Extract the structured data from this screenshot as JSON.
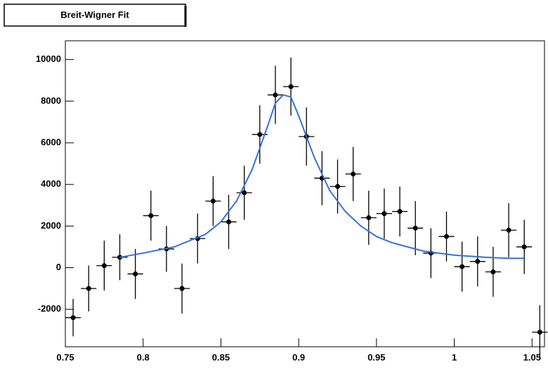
{
  "chart_data": {
    "type": "scatter",
    "title": "Breit-Wigner Fit",
    "xlim": [
      0.75,
      1.058
    ],
    "ylim": [
      -3800,
      10900
    ],
    "xticks": [
      0.75,
      0.8,
      0.85,
      0.9,
      0.95,
      1,
      1.05
    ],
    "yticks": [
      -2000,
      0,
      2000,
      4000,
      6000,
      8000,
      10000
    ],
    "points": {
      "color": "#000000",
      "x": [
        0.755,
        0.765,
        0.775,
        0.785,
        0.795,
        0.805,
        0.815,
        0.825,
        0.835,
        0.845,
        0.855,
        0.865,
        0.875,
        0.885,
        0.895,
        0.905,
        0.915,
        0.925,
        0.935,
        0.945,
        0.955,
        0.965,
        0.975,
        0.985,
        0.995,
        1.005,
        1.015,
        1.025,
        1.035,
        1.045,
        1.055
      ],
      "y": [
        -2400,
        -1000,
        100,
        500,
        -300,
        2500,
        900,
        -1000,
        1400,
        3200,
        2200,
        3600,
        6400,
        8300,
        8700,
        6300,
        4300,
        3900,
        4500,
        2400,
        2600,
        2700,
        1900,
        700,
        1500,
        50,
        300,
        -200,
        1800,
        1000,
        -3100
      ],
      "yerr": [
        900,
        1100,
        1200,
        1100,
        1200,
        1200,
        1100,
        1200,
        1200,
        1200,
        1300,
        1300,
        1400,
        1400,
        1400,
        1400,
        1300,
        1300,
        1300,
        1300,
        1200,
        1200,
        1300,
        1200,
        1200,
        1200,
        1200,
        1200,
        1300,
        1300,
        1300
      ]
    },
    "fit": {
      "color": "#3a6fd8",
      "x": [
        0.785,
        0.8,
        0.82,
        0.84,
        0.85,
        0.86,
        0.87,
        0.88,
        0.885,
        0.89,
        0.895,
        0.9,
        0.91,
        0.92,
        0.93,
        0.94,
        0.95,
        0.96,
        0.97,
        0.98,
        1.0,
        1.02,
        1.035,
        1.045
      ],
      "y": [
        500,
        700,
        1000,
        1600,
        2200,
        3200,
        4700,
        6800,
        7900,
        8300,
        8200,
        7300,
        5300,
        3700,
        2700,
        2000,
        1500,
        1200,
        1000,
        800,
        600,
        500,
        450,
        450
      ]
    }
  }
}
